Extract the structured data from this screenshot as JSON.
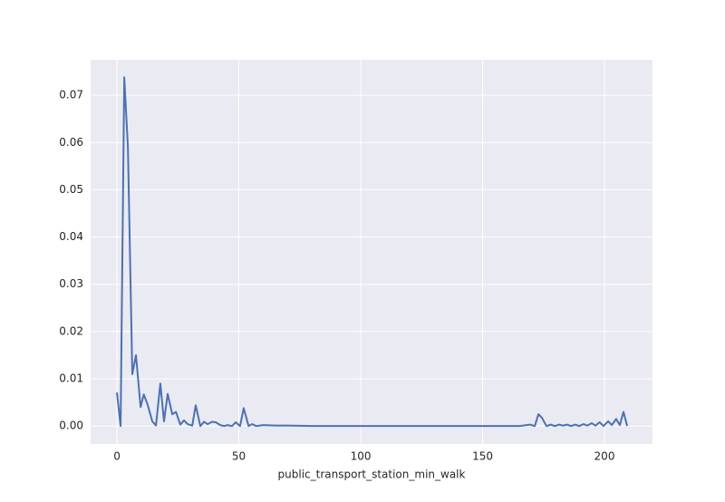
{
  "chart_data": {
    "type": "line",
    "x_label": "public_transport_station_min_walk",
    "x": [
      0,
      1.5,
      3,
      4.5,
      6.3,
      7.8,
      9.7,
      11,
      12.6,
      14.5,
      16,
      17.8,
      19.3,
      20.8,
      22.7,
      24.2,
      26,
      27.5,
      29,
      30.9,
      32.3,
      34.2,
      35.7,
      37.2,
      39,
      40.5,
      42.4,
      44,
      45.4,
      47.2,
      48.7,
      50.5,
      52,
      54,
      55.4,
      57.2,
      60,
      65,
      70,
      80,
      100,
      130,
      150,
      165,
      169.5,
      171.4,
      172.9,
      174.3,
      176.2,
      178,
      179.6,
      181.4,
      183,
      184.8,
      186.2,
      188.1,
      189.6,
      191.4,
      193,
      194.8,
      196.3,
      198,
      199.6,
      201.5,
      203,
      204.8,
      206.3,
      207.8,
      209.3
    ],
    "series": [
      {
        "color": "#4c72b0",
        "values": [
          0.0071,
          0.0,
          0.0738,
          0.059,
          0.011,
          0.015,
          0.004,
          0.0067,
          0.0045,
          0.001,
          0.0001,
          0.009,
          0.001,
          0.0068,
          0.0025,
          0.003,
          0.0003,
          0.0012,
          0.0004,
          0.0001,
          0.0044,
          0.0,
          0.0009,
          0.0004,
          0.0009,
          0.0008,
          0.0002,
          0.0,
          0.0002,
          0.0,
          0.0008,
          0.0,
          0.0038,
          0.0,
          0.0004,
          0.0,
          0.0002,
          0.0001,
          0.0001,
          0.0,
          0.0,
          0.0,
          0.0,
          0.0,
          0.0003,
          0.0,
          0.0025,
          0.0018,
          0.0,
          0.0003,
          0.0,
          0.0003,
          0.0001,
          0.0003,
          0.0,
          0.0003,
          0.0,
          0.0004,
          0.0001,
          0.0006,
          0.0001,
          0.0008,
          0.0,
          0.001,
          0.0002,
          0.0015,
          0.0002,
          0.003,
          0.0
        ]
      }
    ],
    "xlim": [
      -10.8,
      219.7
    ],
    "ylim": [
      -0.0038,
      0.0775
    ],
    "xticks": [
      0,
      50,
      100,
      150,
      200
    ],
    "yticks": [
      {
        "value": 0,
        "label": "0.00"
      },
      0.01,
      0.02,
      0.03,
      0.04,
      0.05,
      0.06,
      0.07
    ],
    "grid": true
  }
}
